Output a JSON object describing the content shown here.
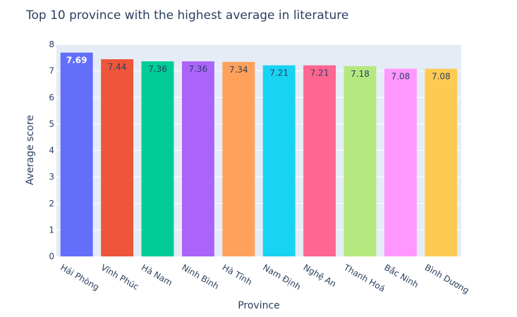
{
  "chart_data": {
    "type": "bar",
    "title": "Top 10 province with the highest average in literature",
    "xlabel": "Province",
    "ylabel": "Average score",
    "categories": [
      "Hải Phòng",
      "Vĩnh Phúc",
      "Hà Nam",
      "Ninh Bình",
      "Hà Tĩnh",
      "Nam Định",
      "Nghệ An",
      "Thanh Hoá",
      "Bắc Ninh",
      "Bình Dương"
    ],
    "values": [
      7.69,
      7.44,
      7.36,
      7.36,
      7.34,
      7.21,
      7.21,
      7.18,
      7.08,
      7.08
    ],
    "value_labels": [
      "7.69",
      "7.44",
      "7.36",
      "7.36",
      "7.34",
      "7.21",
      "7.21",
      "7.18",
      "7.08",
      "7.08"
    ],
    "colors": [
      "#636efa",
      "#ef553b",
      "#00cc96",
      "#ab63fa",
      "#ffa15a",
      "#19d3f3",
      "#ff6692",
      "#b6e880",
      "#ff97ff",
      "#fecb52"
    ],
    "label_colors": [
      "#ffffff",
      "#2a3f5f",
      "#2a3f5f",
      "#2a3f5f",
      "#2a3f5f",
      "#2a3f5f",
      "#2a3f5f",
      "#2a3f5f",
      "#2a3f5f",
      "#2a3f5f"
    ],
    "ylim": [
      0,
      8
    ],
    "yticks": [
      "0",
      "1",
      "2",
      "3",
      "4",
      "5",
      "6",
      "7",
      "8"
    ],
    "grid": true,
    "legend": "none"
  }
}
